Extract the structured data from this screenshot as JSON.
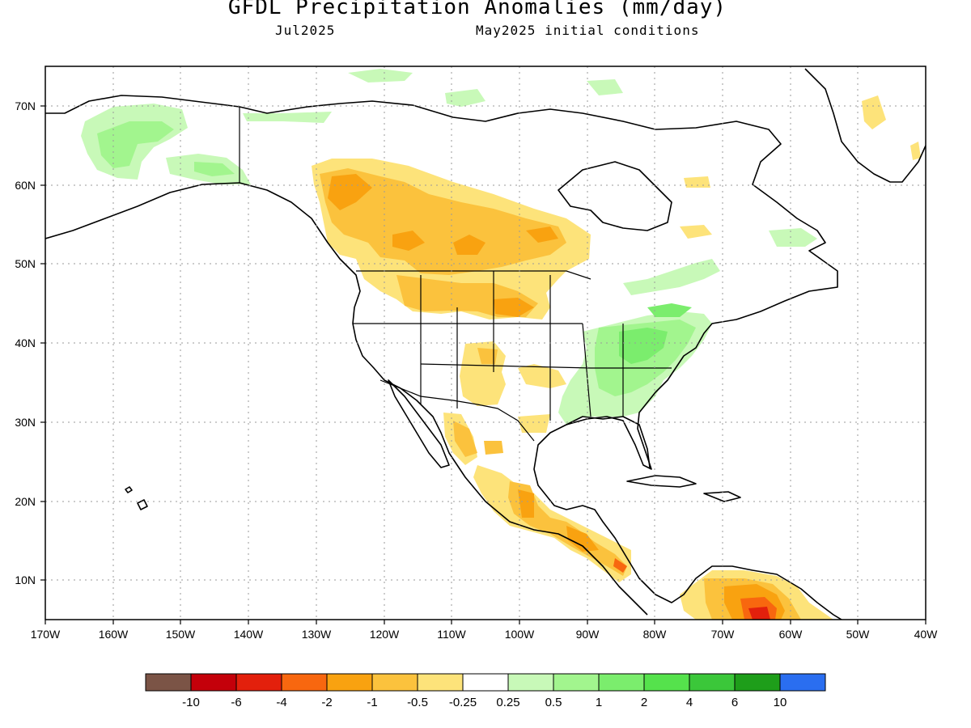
{
  "header": {
    "title": "GFDL Precipitation Anomalies (mm/day)",
    "month": "Jul2025",
    "init": "May2025 initial conditions"
  },
  "map": {
    "lon_range": [
      -170,
      -40
    ],
    "lat_range": [
      5,
      75
    ],
    "lon_ticks": [
      "170W",
      "160W",
      "150W",
      "140W",
      "130W",
      "120W",
      "110W",
      "100W",
      "90W",
      "80W",
      "70W",
      "60W",
      "50W",
      "40W"
    ],
    "lat_ticks": [
      "10N",
      "20N",
      "30N",
      "40N",
      "50N",
      "60N",
      "70N"
    ],
    "grid": true,
    "features": {
      "wet_regions": [
        "Alaska",
        "Ohio Valley",
        "Southeast US",
        "Mid-Atlantic",
        "Eastern Canada"
      ],
      "dry_regions": [
        "Western Canada",
        "Northern Plains",
        "Southwest US",
        "Western Mexico",
        "Central America",
        "Northern South America"
      ]
    }
  },
  "colorbar": {
    "labels": [
      "-10",
      "-6",
      "-4",
      "-2",
      "-1",
      "-0.5",
      "-0.25",
      "0.25",
      "0.5",
      "1",
      "2",
      "4",
      "6",
      "10"
    ],
    "colors": [
      "#7b5446",
      "#c4000a",
      "#e3200c",
      "#f8670f",
      "#f9a210",
      "#fbc23d",
      "#fde37a",
      "#ffffff",
      "#c8f9b8",
      "#a2f58e",
      "#7bed6d",
      "#55e24c",
      "#3bc73a",
      "#1e9e1a",
      "#2a6ef0"
    ]
  }
}
